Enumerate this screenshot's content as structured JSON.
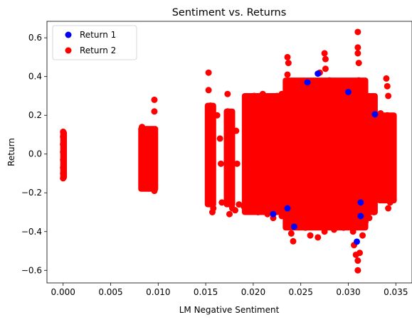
{
  "chart_data": {
    "type": "scatter",
    "title": "Sentiment vs. Returns",
    "xlabel": "LM Negative Sentiment",
    "ylabel": "Return",
    "xlim": [
      -0.0017,
      0.0367
    ],
    "ylim": [
      -0.665,
      0.685
    ],
    "xticks": [
      0.0,
      0.005,
      0.01,
      0.015,
      0.02,
      0.025,
      0.03,
      0.035
    ],
    "xtick_labels": [
      "0.000",
      "0.005",
      "0.010",
      "0.015",
      "0.020",
      "0.025",
      "0.030",
      "0.035"
    ],
    "yticks": [
      -0.6,
      -0.4,
      -0.2,
      0.0,
      0.2,
      0.4,
      0.6
    ],
    "ytick_labels": [
      "−0.6",
      "−0.4",
      "−0.2",
      "0.0",
      "0.2",
      "0.4",
      "0.6"
    ],
    "grid": false,
    "legend_position": "top-left",
    "series": [
      {
        "name": "Return 1",
        "color": "#0000ff",
        "points": [
          [
            0.0268,
            0.415
          ],
          [
            0.0243,
            -0.375
          ],
          [
            0.0309,
            -0.452
          ],
          [
            0.0328,
            0.205
          ],
          [
            0.0313,
            -0.32
          ],
          [
            0.0313,
            -0.25
          ],
          [
            0.0257,
            0.37
          ],
          [
            0.0221,
            -0.31
          ],
          [
            0.0236,
            -0.28
          ],
          [
            0.03,
            0.32
          ]
        ]
      },
      {
        "name": "Return 2",
        "color": "#ff0000",
        "points": [
          [
            0.0,
            0.115
          ],
          [
            0.0,
            0.09
          ],
          [
            0.0,
            0.05
          ],
          [
            0.0,
            0.01
          ],
          [
            0.0,
            -0.03
          ],
          [
            0.0,
            -0.07
          ],
          [
            0.0,
            -0.1
          ],
          [
            0.0,
            -0.125
          ],
          [
            0.0083,
            0.14
          ],
          [
            0.0085,
            0.1
          ],
          [
            0.0087,
            0.06
          ],
          [
            0.0089,
            0.02
          ],
          [
            0.0091,
            -0.02
          ],
          [
            0.0093,
            -0.06
          ],
          [
            0.0095,
            -0.1
          ],
          [
            0.009,
            -0.14
          ],
          [
            0.0094,
            -0.17
          ],
          [
            0.0096,
            -0.19
          ],
          [
            0.0096,
            0.28
          ],
          [
            0.0096,
            0.22
          ],
          [
            0.0088,
            -0.16
          ],
          [
            0.0092,
            0.12
          ],
          [
            0.0153,
            0.42
          ],
          [
            0.0153,
            0.33
          ],
          [
            0.0155,
            0.25
          ],
          [
            0.0155,
            0.18
          ],
          [
            0.0154,
            0.1
          ],
          [
            0.0156,
            0.02
          ],
          [
            0.0154,
            -0.06
          ],
          [
            0.0155,
            -0.14
          ],
          [
            0.0156,
            -0.22
          ],
          [
            0.0158,
            -0.28
          ],
          [
            0.0157,
            -0.3
          ],
          [
            0.0162,
            0.2
          ],
          [
            0.0165,
            0.08
          ],
          [
            0.0166,
            -0.05
          ],
          [
            0.0167,
            -0.25
          ],
          [
            0.0173,
            0.31
          ],
          [
            0.0173,
            0.22
          ],
          [
            0.0175,
            0.12
          ],
          [
            0.0176,
            0.02
          ],
          [
            0.0177,
            -0.08
          ],
          [
            0.0177,
            -0.18
          ],
          [
            0.0178,
            -0.28
          ],
          [
            0.0175,
            -0.31
          ],
          [
            0.0182,
            0.12
          ],
          [
            0.0183,
            -0.05
          ],
          [
            0.0181,
            -0.29
          ],
          [
            0.0185,
            -0.26
          ],
          [
            0.0195,
            0.29
          ],
          [
            0.0201,
            0.3
          ],
          [
            0.0205,
            0.24
          ],
          [
            0.021,
            0.31
          ],
          [
            0.0215,
            0.28
          ],
          [
            0.022,
            0.29
          ],
          [
            0.0225,
            0.3
          ],
          [
            0.023,
            0.31
          ],
          [
            0.0236,
            0.5
          ],
          [
            0.0237,
            0.47
          ],
          [
            0.0236,
            0.41
          ],
          [
            0.0236,
            0.36
          ],
          [
            0.024,
            0.33
          ],
          [
            0.0245,
            0.34
          ],
          [
            0.025,
            0.33
          ],
          [
            0.0255,
            0.34
          ],
          [
            0.026,
            0.35
          ],
          [
            0.0265,
            0.34
          ],
          [
            0.027,
            0.42
          ],
          [
            0.0275,
            0.52
          ],
          [
            0.0276,
            0.49
          ],
          [
            0.0276,
            0.44
          ],
          [
            0.028,
            0.38
          ],
          [
            0.0285,
            0.34
          ],
          [
            0.029,
            0.32
          ],
          [
            0.0295,
            0.36
          ],
          [
            0.03,
            0.34
          ],
          [
            0.0305,
            0.31
          ],
          [
            0.031,
            0.63
          ],
          [
            0.031,
            0.55
          ],
          [
            0.031,
            0.52
          ],
          [
            0.0311,
            0.47
          ],
          [
            0.0311,
            0.38
          ],
          [
            0.0315,
            0.28
          ],
          [
            0.032,
            0.27
          ],
          [
            0.0326,
            0.26
          ],
          [
            0.024,
            -0.41
          ],
          [
            0.0242,
            -0.45
          ],
          [
            0.0245,
            -0.36
          ],
          [
            0.0255,
            -0.38
          ],
          [
            0.026,
            -0.42
          ],
          [
            0.0268,
            -0.43
          ],
          [
            0.0275,
            -0.4
          ],
          [
            0.0285,
            -0.39
          ],
          [
            0.0295,
            -0.38
          ],
          [
            0.03,
            -0.36
          ],
          [
            0.0305,
            -0.4
          ],
          [
            0.0306,
            -0.47
          ],
          [
            0.0308,
            -0.52
          ],
          [
            0.031,
            -0.55
          ],
          [
            0.031,
            -0.6
          ],
          [
            0.0312,
            -0.51
          ],
          [
            0.0315,
            -0.42
          ],
          [
            0.0318,
            -0.35
          ],
          [
            0.0322,
            -0.33
          ],
          [
            0.0327,
            -0.3
          ],
          [
            0.0221,
            -0.33
          ],
          [
            0.0215,
            -0.31
          ],
          [
            0.0205,
            -0.3
          ],
          [
            0.0198,
            -0.29
          ],
          [
            0.019,
            -0.27
          ],
          [
            0.023,
            -0.32
          ],
          [
            0.0235,
            -0.34
          ],
          [
            0.034,
            0.39
          ],
          [
            0.0341,
            0.35
          ],
          [
            0.0342,
            0.3
          ],
          [
            0.0341,
            0.2
          ],
          [
            0.0343,
            0.1
          ],
          [
            0.0344,
            0.0
          ],
          [
            0.0343,
            -0.1
          ],
          [
            0.0342,
            -0.2
          ],
          [
            0.0344,
            -0.25
          ],
          [
            0.0342,
            -0.28
          ],
          [
            0.0334,
            0.21
          ],
          [
            0.0335,
            -0.2
          ],
          [
            0.033,
            0.2
          ],
          [
            0.0331,
            -0.22
          ]
        ]
      }
    ],
    "dense_regions": [
      {
        "series": "Return 2",
        "x_range": [
          0.0191,
          0.0328
        ],
        "y_range": [
          -0.3,
          0.3
        ]
      },
      {
        "series": "Return 2",
        "x_range": [
          0.0152,
          0.0158
        ],
        "y_range": [
          -0.26,
          0.25
        ]
      },
      {
        "series": "Return 2",
        "x_range": [
          0.0172,
          0.0178
        ],
        "y_range": [
          -0.26,
          0.22
        ]
      },
      {
        "series": "Return 2",
        "x_range": [
          0.0082,
          0.0097
        ],
        "y_range": [
          -0.18,
          0.13
        ]
      },
      {
        "series": "Return 2",
        "x_range": [
          0.0,
          0.0001
        ],
        "y_range": [
          -0.12,
          0.11
        ]
      },
      {
        "series": "Return 2",
        "x_range": [
          0.0333,
          0.0348
        ],
        "y_range": [
          -0.24,
          0.2
        ]
      },
      {
        "series": "Return 2",
        "x_range": [
          0.0234,
          0.0318
        ],
        "y_range": [
          -0.38,
          0.38
        ]
      }
    ]
  }
}
